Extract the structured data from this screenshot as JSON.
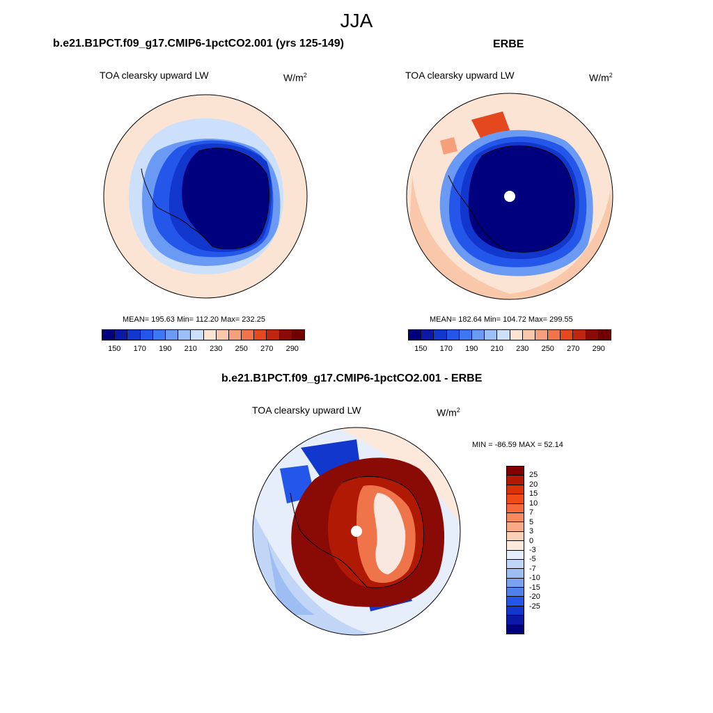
{
  "figure": {
    "title": "JJA"
  },
  "panels": {
    "model": {
      "title": "b.e21.B1PCT.f09_g17.CMIP6-1pctCO2.001 (yrs 125-149)",
      "variable": "TOA clearsky upward LW",
      "units": "W/m",
      "units_exp": "2",
      "stats": "MEAN= 195.63  Min= 112.20  Max= 232.25"
    },
    "obs": {
      "title": "ERBE",
      "variable": "TOA clearsky upward LW",
      "units": "W/m",
      "units_exp": "2",
      "stats": "MEAN= 182.64  Min= 104.72  Max= 299.55"
    },
    "diff": {
      "title": "b.e21.B1PCT.f09_g17.CMIP6-1pctCO2.001 - ERBE",
      "variable": "TOA clearsky upward LW",
      "units": "W/m",
      "units_exp": "2",
      "stats": "MIN = -86.59 MAX =  52.14"
    }
  },
  "colorbar_abs": {
    "colors": [
      "#00007f",
      "#0a1aa6",
      "#1237cc",
      "#2456ea",
      "#3d77f2",
      "#6b9af5",
      "#9dbff7",
      "#cde0fb",
      "#fce4d4",
      "#f9c7a9",
      "#f5a07a",
      "#ef744a",
      "#e4481f",
      "#c0260f",
      "#8a0a05",
      "#700000"
    ],
    "tick_labels": [
      "150",
      "170",
      "190",
      "210",
      "230",
      "250",
      "270",
      "290"
    ]
  },
  "colorbar_diff": {
    "colors": [
      "#800000",
      "#b01a05",
      "#d93208",
      "#ef4a18",
      "#f5693a",
      "#f6895e",
      "#f8aa86",
      "#fbd0b7",
      "#fde8dc",
      "#e6eefb",
      "#c1d5f6",
      "#9ebdf2",
      "#7aa2ee",
      "#4f80ec",
      "#2456ea",
      "#1237cc",
      "#0a1aa6",
      "#00007f"
    ],
    "tick_labels": [
      "25",
      "20",
      "15",
      "10",
      "7",
      "5",
      "3",
      "0",
      "-3",
      "-5",
      "-7",
      "-10",
      "-15",
      "-20",
      "-25"
    ]
  },
  "map_colors": {
    "outer_warm": "#fce4d4",
    "light_blue": "#cde0fb",
    "mid_blue": "#6b9af5",
    "blue": "#2456ea",
    "dark_blue": "#1237cc",
    "navy": "#00007f",
    "diff_red": "#b01a05",
    "diff_darkred": "#8a0a05",
    "diff_orange": "#ef744a",
    "diff_light": "#f8e8e0",
    "coast": "#000000"
  }
}
